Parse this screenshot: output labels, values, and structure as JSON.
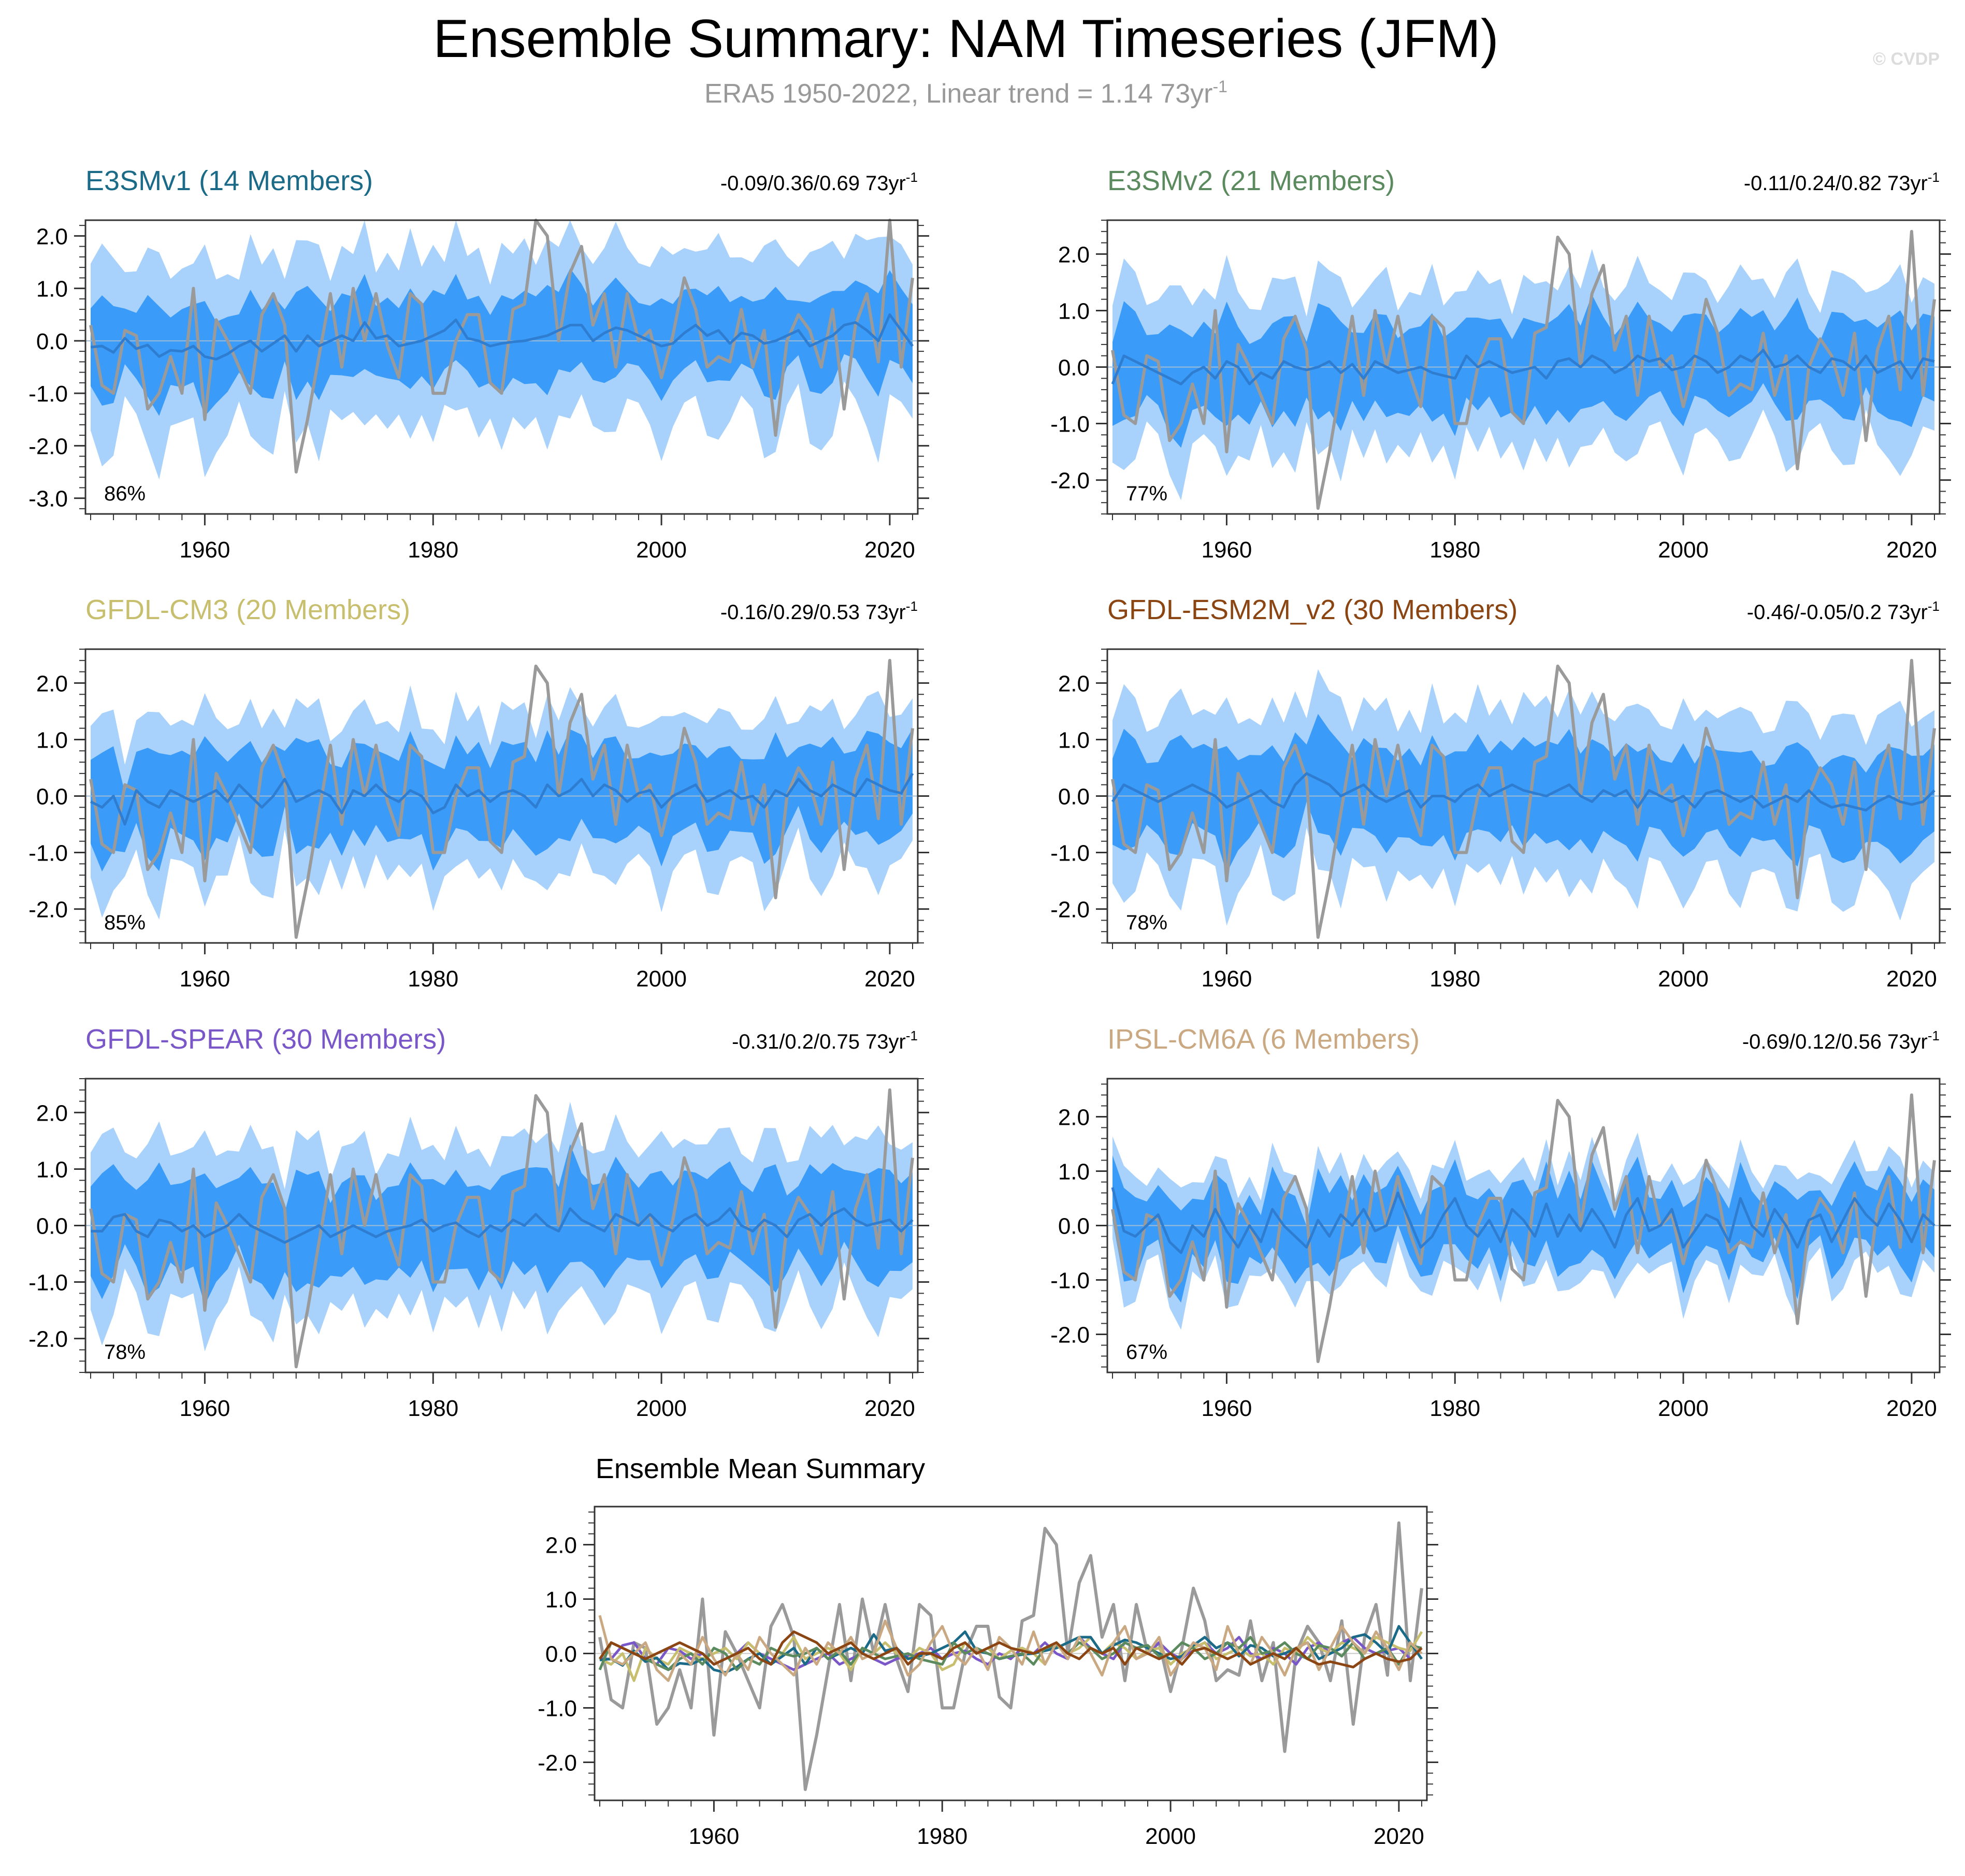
{
  "figure": {
    "title": "Ensemble Summary: NAM Timeseries (JFM)",
    "subtitle_prefix": "ERA5 1950-2022, Linear trend = 1.14 73yr",
    "subtitle_exponent": "-1",
    "watermark": "© CVDP"
  },
  "chart_data": [
    {
      "type": "area",
      "id": "e3smv1",
      "title": "E3SMv1 (14 Members)",
      "title_color": "#1a6a88",
      "trend_text": "-0.09/0.36/0.69 73yr",
      "trend_exponent": "-1",
      "percent_label": "86%",
      "ylim": [
        -3.3,
        2.3
      ],
      "yticks": [
        -3.0,
        -2.0,
        -1.0,
        0.0,
        1.0,
        2.0
      ],
      "ytick_labels": [
        "-3.0",
        "-2.0",
        "-1.0",
        "0.0",
        "1.0",
        "2.0"
      ],
      "xlim": [
        1950,
        2022
      ],
      "xticks": [
        1960,
        1980,
        2000,
        2020
      ],
      "xtick_labels": [
        "1960",
        "1980",
        "2000",
        "2020"
      ],
      "outer_spread": 1.55,
      "inner_spread": 0.7,
      "series": [
        {
          "name": "ensemble mean",
          "values": [
            -0.12,
            -0.1,
            -0.22,
            0.05,
            -0.15,
            -0.08,
            -0.3,
            -0.18,
            -0.2,
            -0.1,
            -0.3,
            -0.35,
            -0.25,
            -0.1,
            0.0,
            -0.2,
            -0.05,
            0.1,
            -0.2,
            0.1,
            -0.1,
            0.0,
            0.1,
            0.0,
            0.35,
            0.05,
            0.1,
            -0.1,
            -0.05,
            0.0,
            0.1,
            0.2,
            0.4,
            0.05,
            0.0,
            -0.1,
            -0.05,
            -0.02,
            0.0,
            0.05,
            0.1,
            0.2,
            0.3,
            0.3,
            0.0,
            0.15,
            0.25,
            0.2,
            0.1,
            0.0,
            -0.1,
            -0.05,
            0.15,
            0.3,
            0.1,
            0.2,
            -0.05,
            0.15,
            0.1,
            -0.05,
            0.0,
            0.1,
            0.2,
            -0.1,
            0.0,
            0.1,
            0.3,
            0.35,
            0.2,
            0.0,
            0.5,
            0.2,
            -0.1
          ]
        }
      ]
    },
    {
      "type": "area",
      "id": "e3smv2",
      "title": "E3SMv2 (21 Members)",
      "title_color": "#5a8a5e",
      "trend_text": "-0.11/0.24/0.82 73yr",
      "trend_exponent": "-1",
      "percent_label": "77%",
      "ylim": [
        -2.6,
        2.6
      ],
      "yticks": [
        -2.0,
        -1.0,
        0.0,
        1.0,
        2.0
      ],
      "ytick_labels": [
        "-2.0",
        "-1.0",
        "0.0",
        "1.0",
        "2.0"
      ],
      "xlim": [
        1950,
        2022
      ],
      "xticks": [
        1960,
        1980,
        2000,
        2020
      ],
      "xtick_labels": [
        "1960",
        "1980",
        "2000",
        "2020"
      ],
      "outer_spread": 1.35,
      "inner_spread": 0.7,
      "series": [
        {
          "name": "ensemble mean",
          "values": [
            -0.3,
            0.2,
            0.1,
            0.0,
            -0.1,
            -0.2,
            -0.3,
            -0.1,
            0.0,
            -0.2,
            0.1,
            0.0,
            -0.3,
            -0.1,
            -0.2,
            0.1,
            0.0,
            -0.05,
            0.0,
            0.1,
            -0.1,
            0.05,
            -0.2,
            0.1,
            0.0,
            -0.1,
            -0.05,
            0.0,
            -0.1,
            -0.15,
            -0.2,
            0.2,
            0.0,
            0.1,
            0.0,
            -0.1,
            -0.05,
            0.0,
            -0.2,
            0.1,
            0.15,
            0.0,
            0.2,
            0.1,
            -0.1,
            0.0,
            0.2,
            0.1,
            0.15,
            -0.05,
            0.0,
            0.2,
            0.1,
            -0.1,
            0.0,
            0.2,
            0.1,
            0.3,
            0.0,
            0.05,
            0.2,
            0.0,
            -0.1,
            0.15,
            0.1,
            -0.05,
            0.2,
            -0.1,
            0.0,
            0.1,
            -0.2,
            0.15,
            0.1
          ]
        }
      ]
    },
    {
      "type": "area",
      "id": "gfdl-cm3",
      "title": "GFDL-CM3 (20 Members)",
      "title_color": "#c8bf6e",
      "trend_text": "-0.16/0.29/0.53 73yr",
      "trend_exponent": "-1",
      "percent_label": "85%",
      "ylim": [
        -2.6,
        2.6
      ],
      "yticks": [
        -2.0,
        -1.0,
        0.0,
        1.0,
        2.0
      ],
      "ytick_labels": [
        "-2.0",
        "-1.0",
        "0.0",
        "1.0",
        "2.0"
      ],
      "xlim": [
        1950,
        2022
      ],
      "xticks": [
        1960,
        1980,
        2000,
        2020
      ],
      "xtick_labels": [
        "1960",
        "1980",
        "2000",
        "2020"
      ],
      "outer_spread": 1.3,
      "inner_spread": 0.7,
      "series": [
        {
          "name": "ensemble mean",
          "values": [
            -0.1,
            -0.2,
            0.0,
            -0.5,
            0.1,
            -0.1,
            -0.2,
            0.1,
            0.0,
            -0.1,
            0.0,
            0.1,
            -0.1,
            0.2,
            0.0,
            -0.2,
            0.0,
            0.3,
            -0.1,
            0.0,
            0.1,
            0.0,
            -0.3,
            0.1,
            0.0,
            0.2,
            0.0,
            -0.1,
            0.1,
            0.0,
            -0.3,
            -0.2,
            0.2,
            0.0,
            0.1,
            -0.1,
            0.05,
            0.1,
            0.0,
            -0.2,
            0.2,
            0.0,
            0.1,
            0.3,
            0.0,
            0.2,
            0.1,
            -0.1,
            0.05,
            0.1,
            -0.2,
            0.0,
            0.1,
            0.2,
            -0.1,
            0.0,
            0.1,
            -0.05,
            0.0,
            -0.2,
            0.1,
            0.0,
            0.3,
            0.1,
            0.0,
            0.2,
            0.1,
            0.0,
            0.3,
            0.2,
            0.1,
            0.05,
            0.4
          ]
        }
      ]
    },
    {
      "type": "area",
      "id": "gfdl-esm2m_v2",
      "title": "GFDL-ESM2M_v2 (30 Members)",
      "title_color": "#8b4513",
      "trend_text": "-0.46/-0.05/0.2 73yr",
      "trend_exponent": "-1",
      "percent_label": "78%",
      "ylim": [
        -2.6,
        2.6
      ],
      "yticks": [
        -2.0,
        -1.0,
        0.0,
        1.0,
        2.0
      ],
      "ytick_labels": [
        "-2.0",
        "-1.0",
        "0.0",
        "1.0",
        "2.0"
      ],
      "xlim": [
        1950,
        2022
      ],
      "xticks": [
        1960,
        1980,
        2000,
        2020
      ],
      "xtick_labels": [
        "1960",
        "1980",
        "2000",
        "2020"
      ],
      "outer_spread": 1.4,
      "inner_spread": 0.72,
      "series": [
        {
          "name": "ensemble mean",
          "values": [
            -0.1,
            0.2,
            0.1,
            0.0,
            -0.1,
            0.0,
            0.1,
            0.2,
            0.1,
            0.0,
            -0.2,
            -0.1,
            0.0,
            0.1,
            -0.1,
            -0.2,
            0.2,
            0.4,
            0.3,
            0.2,
            0.0,
            0.1,
            0.2,
            0.0,
            -0.1,
            0.0,
            0.1,
            -0.2,
            0.0,
            0.0,
            -0.1,
            0.1,
            0.2,
            0.0,
            0.1,
            0.2,
            0.1,
            0.05,
            0.0,
            0.1,
            0.2,
            0.0,
            -0.1,
            0.1,
            0.0,
            0.1,
            -0.2,
            0.1,
            0.0,
            -0.1,
            0.0,
            -0.2,
            0.05,
            0.1,
            0.0,
            -0.1,
            0.0,
            -0.2,
            -0.1,
            0.0,
            -0.1,
            0.1,
            -0.1,
            -0.2,
            -0.15,
            -0.2,
            -0.25,
            -0.1,
            0.0,
            -0.1,
            -0.15,
            -0.1,
            0.1
          ]
        }
      ]
    },
    {
      "type": "area",
      "id": "gfdl-spear",
      "title": "GFDL-SPEAR (30 Members)",
      "title_color": "#7a57c8",
      "trend_text": "-0.31/0.2/0.75 73yr",
      "trend_exponent": "-1",
      "percent_label": "78%",
      "ylim": [
        -2.6,
        2.6
      ],
      "yticks": [
        -2.0,
        -1.0,
        0.0,
        1.0,
        2.0
      ],
      "ytick_labels": [
        "-2.0",
        "-1.0",
        "0.0",
        "1.0",
        "2.0"
      ],
      "xlim": [
        1950,
        2022
      ],
      "xticks": [
        1960,
        1980,
        2000,
        2020
      ],
      "xtick_labels": [
        "1960",
        "1980",
        "2000",
        "2020"
      ],
      "outer_spread": 1.35,
      "inner_spread": 0.75,
      "series": [
        {
          "name": "ensemble mean",
          "values": [
            -0.1,
            -0.1,
            0.15,
            0.2,
            -0.1,
            -0.2,
            0.1,
            0.05,
            -0.1,
            0.0,
            -0.2,
            -0.1,
            0.0,
            0.2,
            0.0,
            -0.1,
            -0.2,
            -0.3,
            -0.2,
            -0.1,
            0.0,
            -0.2,
            -0.1,
            0.0,
            -0.1,
            -0.2,
            -0.1,
            -0.05,
            0.0,
            0.1,
            -0.1,
            0.0,
            0.05,
            -0.1,
            -0.2,
            0.0,
            -0.1,
            0.1,
            0.0,
            0.2,
            0.0,
            -0.1,
            0.3,
            0.1,
            0.0,
            -0.1,
            0.2,
            0.1,
            0.0,
            0.2,
            0.0,
            -0.1,
            0.1,
            0.2,
            0.0,
            0.1,
            0.3,
            0.0,
            -0.1,
            0.1,
            0.0,
            -0.2,
            0.1,
            0.2,
            0.0,
            0.2,
            0.3,
            0.1,
            0.0,
            0.05,
            0.1,
            -0.1,
            0.1
          ]
        }
      ]
    },
    {
      "type": "area",
      "id": "ipsl-cm6a",
      "title": "IPSL-CM6A (6 Members)",
      "title_color": "#c9a882",
      "trend_text": "-0.69/0.12/0.56 73yr",
      "trend_exponent": "-1",
      "percent_label": "67%",
      "ylim": [
        -2.7,
        2.7
      ],
      "yticks": [
        -2.0,
        -1.0,
        0.0,
        1.0,
        2.0
      ],
      "ytick_labels": [
        "-2.0",
        "-1.0",
        "0.0",
        "1.0",
        "2.0"
      ],
      "xlim": [
        1950,
        2022
      ],
      "xticks": [
        1960,
        1980,
        2000,
        2020
      ],
      "xtick_labels": [
        "1960",
        "1980",
        "2000",
        "2020"
      ],
      "outer_spread": 0.9,
      "inner_spread": 0.55,
      "series": [
        {
          "name": "ensemble mean",
          "values": [
            0.7,
            -0.1,
            -0.2,
            0.0,
            0.2,
            -0.3,
            -0.5,
            0.0,
            -0.2,
            0.3,
            -0.1,
            -0.4,
            0.0,
            -0.3,
            0.3,
            0.0,
            -0.2,
            -0.4,
            0.1,
            -0.2,
            0.2,
            0.0,
            0.3,
            -0.1,
            0.0,
            0.6,
            0.1,
            -0.4,
            -0.2,
            0.2,
            0.5,
            0.0,
            -0.2,
            0.1,
            -0.3,
            0.3,
            0.1,
            -0.2,
            0.4,
            -0.2,
            0.2,
            -0.1,
            0.3,
            0.0,
            -0.4,
            0.2,
            0.5,
            -0.1,
            0.0,
            0.3,
            -0.4,
            -0.1,
            0.2,
            0.1,
            -0.3,
            0.5,
            0.0,
            -0.2,
            0.3,
            0.0,
            -0.4,
            0.1,
            0.2,
            -0.3,
            0.1,
            0.5,
            0.2,
            0.0,
            0.4,
            0.1,
            -0.3,
            0.2,
            0.0
          ]
        }
      ]
    },
    {
      "type": "line",
      "id": "ensemble-mean-summary",
      "title": "Ensemble Mean Summary",
      "ylim": [
        -2.7,
        2.7
      ],
      "yticks": [
        -2.0,
        -1.0,
        0.0,
        1.0,
        2.0
      ],
      "ytick_labels": [
        "-2.0",
        "-1.0",
        "0.0",
        "1.0",
        "2.0"
      ],
      "xlim": [
        1950,
        2022
      ],
      "xticks": [
        1960,
        1980,
        2000,
        2020
      ],
      "xtick_labels": [
        "1960",
        "1980",
        "2000",
        "2020"
      ],
      "series_ref": [
        "ERA5",
        "E3SMv1",
        "E3SMv2",
        "GFDL-CM3",
        "GFDL-ESM2M_v2",
        "GFDL-SPEAR",
        "IPSL-CM6A"
      ]
    }
  ],
  "observations": {
    "name": "ERA5",
    "color": "#9a9a9a",
    "x": [
      1950,
      1951,
      1952,
      1953,
      1954,
      1955,
      1956,
      1957,
      1958,
      1959,
      1960,
      1961,
      1962,
      1963,
      1964,
      1965,
      1966,
      1967,
      1968,
      1969,
      1970,
      1971,
      1972,
      1973,
      1974,
      1975,
      1976,
      1977,
      1978,
      1979,
      1980,
      1981,
      1982,
      1983,
      1984,
      1985,
      1986,
      1987,
      1988,
      1989,
      1990,
      1991,
      1992,
      1993,
      1994,
      1995,
      1996,
      1997,
      1998,
      1999,
      2000,
      2001,
      2002,
      2003,
      2004,
      2005,
      2006,
      2007,
      2008,
      2009,
      2010,
      2011,
      2012,
      2013,
      2014,
      2015,
      2016,
      2017,
      2018,
      2019,
      2020,
      2021,
      2022
    ],
    "values": [
      0.3,
      -0.85,
      -1.0,
      0.2,
      0.1,
      -1.3,
      -1.0,
      -0.3,
      -1.0,
      1.0,
      -1.5,
      0.4,
      0.0,
      -0.5,
      -1.0,
      0.5,
      0.9,
      0.3,
      -2.5,
      -1.5,
      -0.3,
      0.9,
      -0.5,
      1.0,
      0.0,
      0.9,
      -0.1,
      -0.7,
      0.9,
      0.7,
      -1.0,
      -1.0,
      0.0,
      0.5,
      0.5,
      -0.8,
      -1.0,
      0.6,
      0.7,
      2.3,
      2.0,
      0.0,
      1.3,
      1.8,
      0.3,
      0.9,
      -0.5,
      0.9,
      0.0,
      0.2,
      -0.7,
      0.1,
      1.2,
      0.6,
      -0.5,
      -0.3,
      -0.4,
      0.6,
      -0.5,
      0.2,
      -1.8,
      0.0,
      0.5,
      0.2,
      -0.5,
      0.6,
      -1.3,
      0.3,
      0.9,
      -0.4,
      2.4,
      -0.5,
      1.2
    ]
  },
  "legend_colors": {
    "outer_band": "#a8d2fb",
    "inner_band": "#3a9cf8",
    "ensemble_mean": "#2f7dd0",
    "zero_line": "#9dbbd6",
    "axis": "#333333"
  }
}
